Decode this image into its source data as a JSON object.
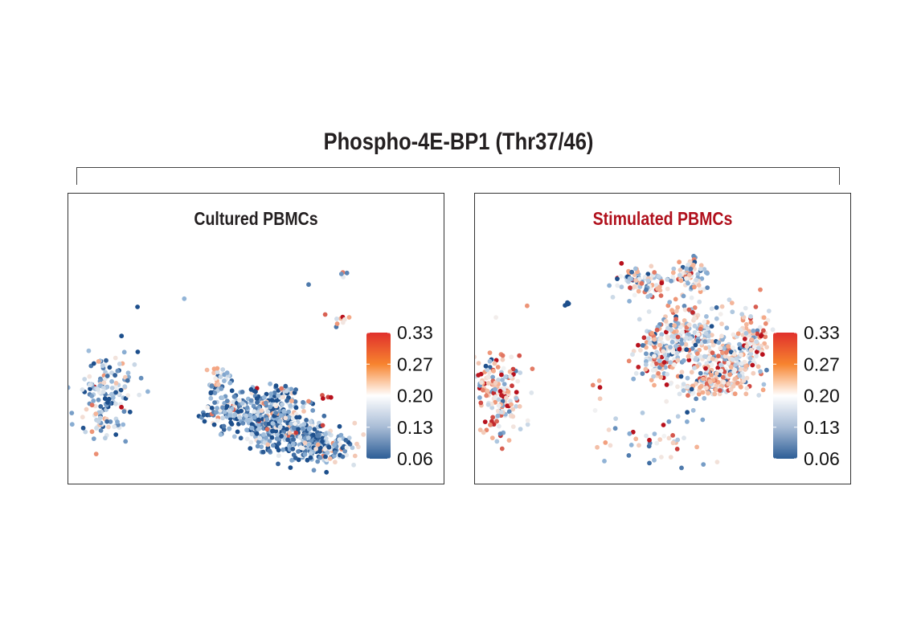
{
  "title": "Phospho-4E-BP1 (Thr37/46)",
  "chart_data": {
    "type": "scatter",
    "title": "Phospho-4E-BP1 (Thr37/46)",
    "xlabel": "",
    "ylabel": "",
    "xlim": [
      -10,
      10
    ],
    "ylim": [
      -10,
      10
    ],
    "grid": false,
    "colorbar": {
      "ticks": [
        "0.33",
        "0.27",
        "0.20",
        "0.13",
        "0.06"
      ],
      "range": [
        0.06,
        0.33
      ],
      "colors": [
        "#2c5d96",
        "#a8bcd6",
        "#ffffff",
        "#f7842f",
        "#e0302c"
      ],
      "placement": "right"
    },
    "panels": [
      {
        "name": "Cultured PBMCs",
        "title_color": "#231f20",
        "seed": 7,
        "clusters": [
          {
            "cx": -8.0,
            "cy": -4.0,
            "sx": 0.9,
            "sy": 1.7,
            "n": 160,
            "mean": 0.14
          },
          {
            "cx": -2.0,
            "cy": -2.9,
            "sx": 0.5,
            "sy": 0.6,
            "n": 40,
            "mean": 0.13
          },
          {
            "cx": -0.8,
            "cy": -4.9,
            "sx": 1.3,
            "sy": 0.9,
            "n": 180,
            "mean": 0.12
          },
          {
            "cx": 1.4,
            "cy": -4.2,
            "sx": 0.8,
            "sy": 0.7,
            "n": 70,
            "mean": 0.13
          },
          {
            "cx": 1.3,
            "cy": -6.2,
            "sx": 1.4,
            "sy": 0.9,
            "n": 220,
            "mean": 0.12
          },
          {
            "cx": 3.4,
            "cy": -7.3,
            "sx": 1.1,
            "sy": 0.8,
            "n": 200,
            "mean": 0.12
          },
          {
            "cx": -6.33,
            "cy": 2.23,
            "sx": 0.01,
            "sy": 0.01,
            "n": 1,
            "mean": 0.15
          },
          {
            "cx": -3.86,
            "cy": 2.78,
            "sx": 0.01,
            "sy": 0.01,
            "n": 1,
            "mean": 0.15
          },
          {
            "cx": 2.75,
            "cy": 3.77,
            "sx": 0.01,
            "sy": 0.01,
            "n": 1,
            "mean": 0.07
          },
          {
            "cx": 4.67,
            "cy": 4.6,
            "sx": 0.1,
            "sy": 0.2,
            "n": 4,
            "mean": 0.2
          },
          {
            "cx": 4.4,
            "cy": 1.3,
            "sx": 0.35,
            "sy": 0.3,
            "n": 9,
            "mean": 0.22
          },
          {
            "cx": 3.7,
            "cy": -3.9,
            "sx": 0.2,
            "sy": 0.2,
            "n": 4,
            "mean": 0.22
          }
        ]
      },
      {
        "name": "Stimulated PBMCs",
        "title_color": "#b0101c",
        "seed": 13,
        "clusters": [
          {
            "cx": -8.7,
            "cy": -3.8,
            "sx": 0.8,
            "sy": 2.0,
            "n": 170,
            "mean": 0.22
          },
          {
            "cx": -1.0,
            "cy": 3.9,
            "sx": 0.9,
            "sy": 0.6,
            "n": 90,
            "mean": 0.19
          },
          {
            "cx": 1.5,
            "cy": 4.4,
            "sx": 0.6,
            "sy": 0.8,
            "n": 80,
            "mean": 0.19
          },
          {
            "cx": 1.5,
            "cy": 0.3,
            "sx": 1.2,
            "sy": 1.5,
            "n": 200,
            "mean": 0.19
          },
          {
            "cx": -0.2,
            "cy": -1.0,
            "sx": 0.8,
            "sy": 1.3,
            "n": 120,
            "mean": 0.2
          },
          {
            "cx": 3.6,
            "cy": -1.5,
            "sx": 1.1,
            "sy": 1.3,
            "n": 170,
            "mean": 0.2
          },
          {
            "cx": 2.4,
            "cy": -3.1,
            "sx": 1.0,
            "sy": 0.5,
            "n": 90,
            "mean": 0.21
          },
          {
            "cx": 4.6,
            "cy": 0.2,
            "sx": 0.6,
            "sy": 1.2,
            "n": 80,
            "mean": 0.22
          },
          {
            "cx": -0.6,
            "cy": -7.0,
            "sx": 1.9,
            "sy": 1.1,
            "n": 45,
            "mean": 0.17
          },
          {
            "cx": -7.23,
            "cy": 2.29,
            "sx": 0.01,
            "sy": 0.01,
            "n": 1,
            "mean": 0.33
          },
          {
            "cx": -5.1,
            "cy": 2.5,
            "sx": 0.15,
            "sy": 0.15,
            "n": 4,
            "mean": 0.14
          },
          {
            "cx": -3.6,
            "cy": -3.6,
            "sx": 0.3,
            "sy": 0.6,
            "n": 5,
            "mean": 0.25
          }
        ]
      }
    ]
  }
}
